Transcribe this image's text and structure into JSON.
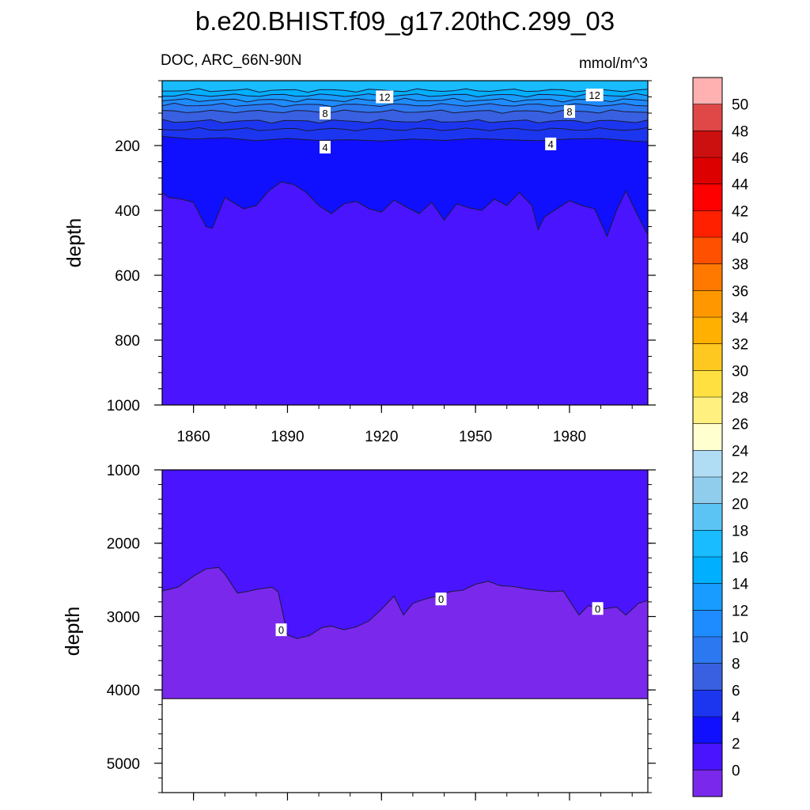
{
  "chart_data": {
    "type": "contour",
    "title": "b.e20.BHIST.f09_g17.20thC.299_03",
    "variable_label": "DOC, ARC_66N-90N",
    "units": "mmol/m^3",
    "x": {
      "start": 1850,
      "end": 2005,
      "ticks": [
        "1860",
        "1890",
        "1920",
        "1950",
        "1980"
      ]
    },
    "panels": [
      {
        "ylabel": "depth",
        "ylim": [
          0,
          1000
        ],
        "y_reversed": true,
        "yticks": [
          "200",
          "400",
          "600",
          "800",
          "1000"
        ],
        "top_layers_depth": [
          30,
          45,
          60,
          75,
          95,
          125,
          150
        ],
        "contour_4": {
          "x": [
            1850,
            1860,
            1870,
            1880,
            1890,
            1900,
            1910,
            1920,
            1930,
            1940,
            1950,
            1960,
            1970,
            1980,
            1990,
            2000,
            2005
          ],
          "depth": [
            172,
            180,
            176,
            185,
            178,
            184,
            182,
            186,
            180,
            184,
            178,
            182,
            185,
            180,
            178,
            186,
            188
          ]
        },
        "contour_2": {
          "x": [
            1850,
            1852,
            1856,
            1860,
            1864,
            1866,
            1870,
            1876,
            1880,
            1884,
            1888,
            1892,
            1896,
            1900,
            1904,
            1908,
            1912,
            1916,
            1920,
            1924,
            1928,
            1932,
            1936,
            1940,
            1944,
            1948,
            1952,
            1956,
            1960,
            1964,
            1968,
            1970,
            1972,
            1976,
            1980,
            1984,
            1988,
            1992,
            1995,
            1998,
            2002,
            2005
          ],
          "depth": [
            345,
            360,
            365,
            375,
            450,
            455,
            360,
            395,
            385,
            340,
            312,
            320,
            345,
            385,
            410,
            380,
            372,
            395,
            405,
            368,
            390,
            410,
            375,
            430,
            380,
            392,
            400,
            365,
            385,
            345,
            385,
            460,
            420,
            395,
            370,
            385,
            395,
            480,
            400,
            340,
            420,
            475
          ]
        },
        "contour_labels": [
          {
            "text": "12",
            "x": 1921,
            "depth": 50
          },
          {
            "text": "12",
            "x": 1988,
            "depth": 44
          },
          {
            "text": "8",
            "x": 1902,
            "depth": 100
          },
          {
            "text": "8",
            "x": 1980,
            "depth": 95
          },
          {
            "text": "4",
            "x": 1902,
            "depth": 205
          },
          {
            "text": "4",
            "x": 1974,
            "depth": 195
          }
        ]
      },
      {
        "ylabel": "depth",
        "ylim": [
          1000,
          5400
        ],
        "y_reversed": true,
        "yticks": [
          "1000",
          "2000",
          "3000",
          "4000",
          "5000"
        ],
        "bottom_of_data_depth": 4120,
        "contour_0": {
          "x": [
            1850,
            1855,
            1860,
            1864,
            1868,
            1870,
            1874,
            1877,
            1880,
            1885,
            1887,
            1890,
            1893,
            1897,
            1901,
            1904,
            1908,
            1912,
            1916,
            1920,
            1924,
            1927,
            1930,
            1934,
            1938,
            1942,
            1946,
            1950,
            1954,
            1958,
            1962,
            1966,
            1970,
            1974,
            1978,
            1983,
            1986,
            1990,
            1995,
            1998,
            2002,
            2005
          ],
          "depth": [
            2650,
            2600,
            2450,
            2350,
            2330,
            2420,
            2680,
            2660,
            2630,
            2600,
            2660,
            3250,
            3300,
            3260,
            3150,
            3130,
            3180,
            3140,
            3060,
            2900,
            2720,
            2980,
            2820,
            2760,
            2720,
            2660,
            2640,
            2560,
            2520,
            2580,
            2590,
            2620,
            2640,
            2660,
            2650,
            2980,
            2850,
            2900,
            2870,
            2980,
            2820,
            2780
          ]
        },
        "contour_labels": [
          {
            "text": "0",
            "x": 1888,
            "depth": 3180
          },
          {
            "text": "0",
            "x": 1939,
            "depth": 2760
          },
          {
            "text": "0",
            "x": 1989,
            "depth": 2890
          }
        ]
      }
    ],
    "colorbar": {
      "labels": [
        "50",
        "48",
        "46",
        "44",
        "42",
        "40",
        "38",
        "36",
        "34",
        "32",
        "30",
        "28",
        "26",
        "24",
        "22",
        "20",
        "18",
        "16",
        "14",
        "12",
        "10",
        "8",
        "6",
        "4",
        "2",
        "0"
      ],
      "colors_top_to_bottom": [
        "#ffb0b0",
        "#e04848",
        "#cc1010",
        "#dd0000",
        "#ff0000",
        "#ff2000",
        "#ff5000",
        "#ff7800",
        "#ff9800",
        "#ffb000",
        "#ffc820",
        "#ffe040",
        "#fff080",
        "#ffffd0",
        "#b0dcf4",
        "#90ccec",
        "#5cc4f4",
        "#18bcff",
        "#00b0ff",
        "#189cff",
        "#1e8cff",
        "#2c78f0",
        "#3860e0",
        "#1c36f0",
        "#1010ff",
        "#4a14ff",
        "#7a28ec"
      ]
    },
    "colors": {
      "surface_layers_top_to_bottom": [
        "#18bcff",
        "#00b0ff",
        "#189cff",
        "#1e8cff",
        "#2c78f0",
        "#3860e0",
        "#1c36f0"
      ],
      "band_2_4": "#1010ff",
      "band_0_2": "#4a14ff",
      "band_below_0": "#7a28ec",
      "no_data": "#ffffff"
    }
  }
}
